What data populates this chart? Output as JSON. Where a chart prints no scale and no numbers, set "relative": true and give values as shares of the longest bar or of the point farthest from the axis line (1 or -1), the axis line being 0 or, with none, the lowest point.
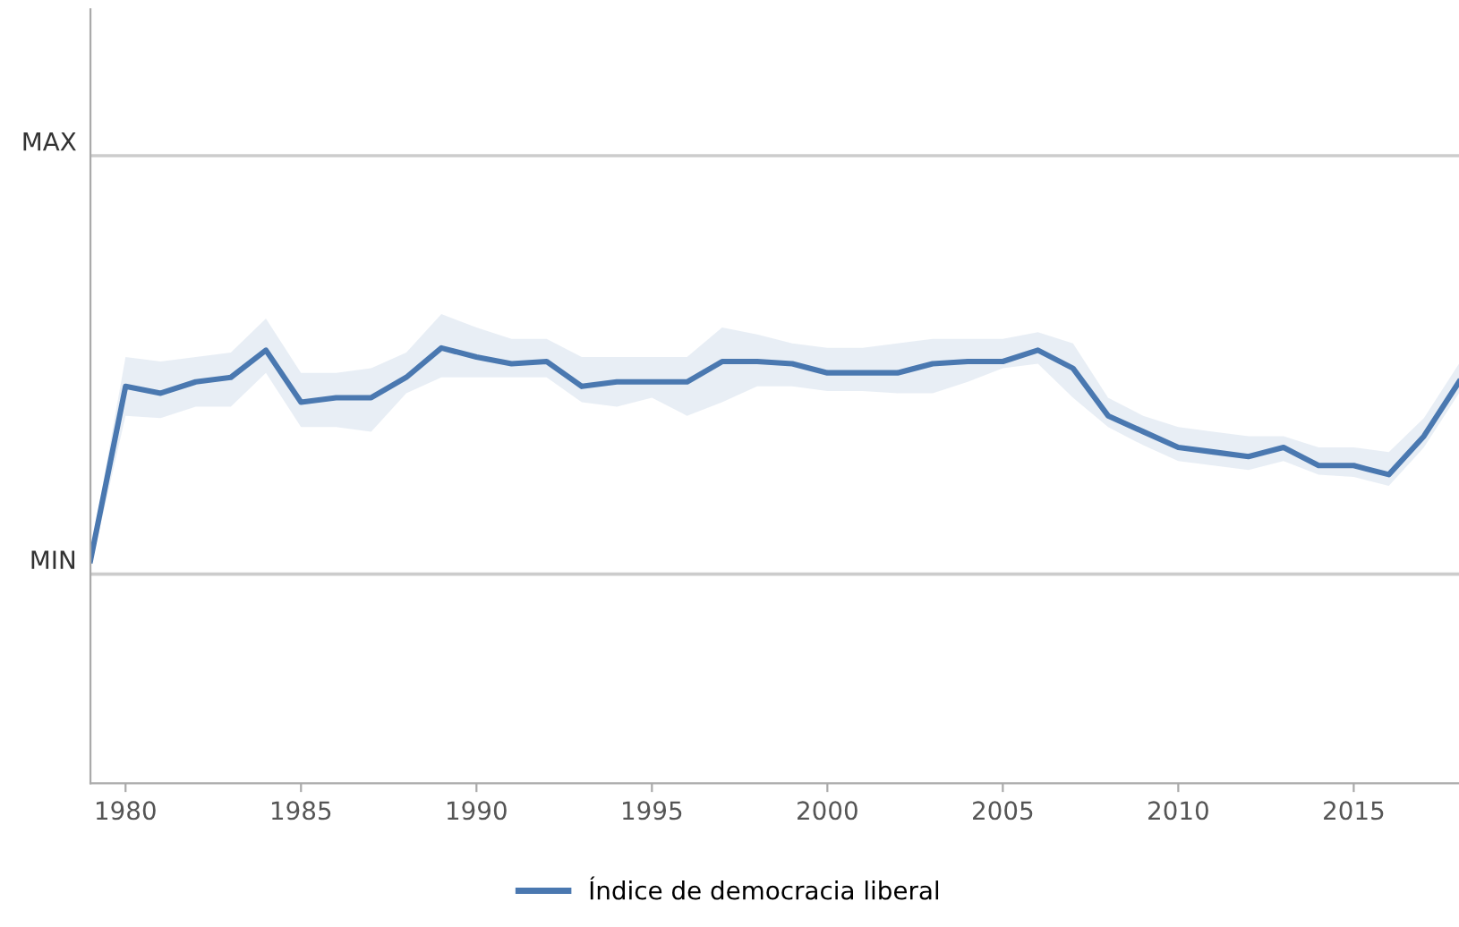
{
  "chart_data": {
    "type": "line",
    "relative": true,
    "x": [
      1979,
      1980,
      1981,
      1982,
      1983,
      1984,
      1985,
      1986,
      1987,
      1988,
      1989,
      1990,
      1991,
      1992,
      1993,
      1994,
      1995,
      1996,
      1997,
      1998,
      1999,
      2000,
      2001,
      2002,
      2003,
      2004,
      2005,
      2006,
      2007,
      2008,
      2009,
      2010,
      2011,
      2012,
      2013,
      2014,
      2015,
      2016,
      2017,
      2018
    ],
    "series": [
      {
        "name": "Índice de democracia liberal",
        "color": "#4a78b0",
        "values": [
          0.06,
          0.83,
          0.8,
          0.85,
          0.87,
          0.99,
          0.76,
          0.78,
          0.78,
          0.87,
          1,
          0.96,
          0.93,
          0.94,
          0.83,
          0.85,
          0.85,
          0.85,
          0.94,
          0.94,
          0.93,
          0.89,
          0.89,
          0.89,
          0.93,
          0.94,
          0.94,
          0.99,
          0.91,
          0.7,
          0.63,
          0.56,
          0.54,
          0.52,
          0.56,
          0.48,
          0.48,
          0.44,
          0.61,
          0.85
        ],
        "upper": [
          0.09,
          0.96,
          0.94,
          0.96,
          0.98,
          1.13,
          0.89,
          0.89,
          0.91,
          0.98,
          1.15,
          1.09,
          1.04,
          1.04,
          0.96,
          0.96,
          0.96,
          0.96,
          1.09,
          1.06,
          1.02,
          1.0,
          1.0,
          1.02,
          1.04,
          1.04,
          1.04,
          1.07,
          1.02,
          0.78,
          0.7,
          0.65,
          0.63,
          0.61,
          0.61,
          0.56,
          0.56,
          0.54,
          0.69,
          0.93
        ],
        "lower": [
          0.02,
          0.7,
          0.69,
          0.74,
          0.74,
          0.89,
          0.65,
          0.65,
          0.63,
          0.8,
          0.87,
          0.87,
          0.87,
          0.87,
          0.76,
          0.74,
          0.78,
          0.7,
          0.76,
          0.83,
          0.83,
          0.81,
          0.81,
          0.8,
          0.8,
          0.85,
          0.91,
          0.93,
          0.78,
          0.65,
          0.57,
          0.5,
          0.48,
          0.46,
          0.5,
          0.44,
          0.43,
          0.39,
          0.56,
          0.8
        ]
      }
    ],
    "xlim": [
      1979,
      2018
    ],
    "xticks": [
      1980,
      1985,
      1990,
      1995,
      2000,
      2005,
      2010,
      2015
    ],
    "ref_lines": [
      {
        "axis": "y",
        "value": 1.85,
        "label": "MAX",
        "color": "#cccccc"
      },
      {
        "axis": "y",
        "value": 0,
        "label": "MIN",
        "color": "#cccccc"
      }
    ],
    "legend": "bottom",
    "marker": "none",
    "line_style": "solid"
  }
}
